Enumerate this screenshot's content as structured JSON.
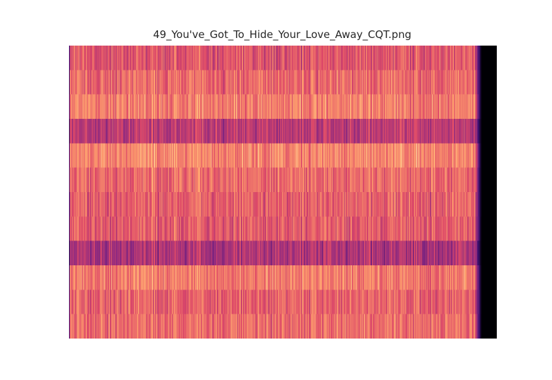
{
  "figure": {
    "title": "49_You've_Got_To_Hide_Your_Love_Away_CQT.png"
  },
  "chart_data": {
    "type": "heatmap",
    "title": "49_You've_Got_To_Hide_Your_Love_Away_CQT.png",
    "xlabel": "",
    "ylabel": "",
    "axes_visible": false,
    "grid": false,
    "legend": "none",
    "colormap": "magma",
    "colormap_stops": [
      "#000004",
      "#3b0f70",
      "#8c2981",
      "#de4968",
      "#fe9f6d",
      "#fcfdbf"
    ],
    "n_bands": 12,
    "band_mean_intensity": [
      0.62,
      0.68,
      0.72,
      0.52,
      0.74,
      0.68,
      0.65,
      0.64,
      0.48,
      0.72,
      0.66,
      0.68
    ],
    "n_time_frames": 600,
    "audio_end_fraction": 0.963,
    "fade_frames": 8
  }
}
